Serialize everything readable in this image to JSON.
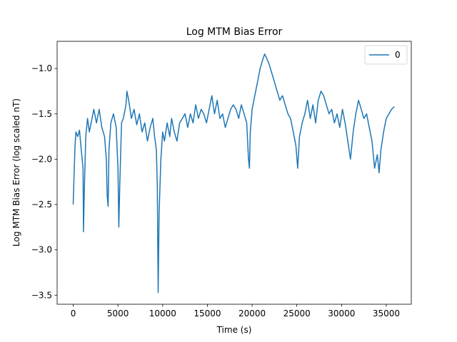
{
  "chart_data": {
    "type": "line",
    "title": "Log MTM Bias Error",
    "xlabel": "Time (s)",
    "ylabel": "Log MTM Bias Error (log scaled nT)",
    "xlim": [
      -1800,
      37800
    ],
    "ylim": [
      -3.6,
      -0.7
    ],
    "xticks": [
      0,
      5000,
      10000,
      15000,
      20000,
      25000,
      30000,
      35000
    ],
    "xtick_labels": [
      "0",
      "5000",
      "10000",
      "15000",
      "20000",
      "25000",
      "30000",
      "35000"
    ],
    "yticks": [
      -3.5,
      -3.0,
      -2.5,
      -2.0,
      -1.5,
      -1.0
    ],
    "ytick_labels": [
      "−3.5",
      "−3.0",
      "−2.5",
      "−2.0",
      "−1.5",
      "−1.0"
    ],
    "grid": false,
    "legend_position": "upper right",
    "series": [
      {
        "name": "0",
        "color": "#1f77b4",
        "points": [
          [
            0,
            -2.5
          ],
          [
            100,
            -2.15
          ],
          [
            200,
            -1.85
          ],
          [
            300,
            -1.7
          ],
          [
            500,
            -1.75
          ],
          [
            700,
            -1.68
          ],
          [
            900,
            -1.9
          ],
          [
            1100,
            -2.1
          ],
          [
            1150,
            -2.8
          ],
          [
            1250,
            -2.3
          ],
          [
            1400,
            -1.75
          ],
          [
            1600,
            -1.55
          ],
          [
            1800,
            -1.7
          ],
          [
            2000,
            -1.6
          ],
          [
            2300,
            -1.45
          ],
          [
            2600,
            -1.6
          ],
          [
            2900,
            -1.45
          ],
          [
            3200,
            -1.65
          ],
          [
            3500,
            -1.75
          ],
          [
            3700,
            -2.0
          ],
          [
            3800,
            -2.4
          ],
          [
            3900,
            -2.52
          ],
          [
            4000,
            -1.9
          ],
          [
            4200,
            -1.6
          ],
          [
            4500,
            -1.5
          ],
          [
            4800,
            -1.65
          ],
          [
            5000,
            -2.1
          ],
          [
            5100,
            -2.75
          ],
          [
            5200,
            -2.3
          ],
          [
            5400,
            -1.6
          ],
          [
            5600,
            -1.55
          ],
          [
            5900,
            -1.4
          ],
          [
            6000,
            -1.25
          ],
          [
            6200,
            -1.35
          ],
          [
            6500,
            -1.55
          ],
          [
            6800,
            -1.45
          ],
          [
            7100,
            -1.62
          ],
          [
            7400,
            -1.5
          ],
          [
            7700,
            -1.7
          ],
          [
            8000,
            -1.6
          ],
          [
            8300,
            -1.8
          ],
          [
            8600,
            -1.65
          ],
          [
            8900,
            -1.55
          ],
          [
            9100,
            -1.75
          ],
          [
            9300,
            -1.9
          ],
          [
            9400,
            -2.3
          ],
          [
            9500,
            -3.47
          ],
          [
            9600,
            -2.6
          ],
          [
            9800,
            -2.0
          ],
          [
            10000,
            -1.7
          ],
          [
            10200,
            -1.8
          ],
          [
            10500,
            -1.6
          ],
          [
            10800,
            -1.75
          ],
          [
            11000,
            -1.55
          ],
          [
            11300,
            -1.7
          ],
          [
            11600,
            -1.8
          ],
          [
            11900,
            -1.6
          ],
          [
            12200,
            -1.55
          ],
          [
            12500,
            -1.5
          ],
          [
            12800,
            -1.65
          ],
          [
            13100,
            -1.5
          ],
          [
            13400,
            -1.6
          ],
          [
            13700,
            -1.4
          ],
          [
            14000,
            -1.55
          ],
          [
            14300,
            -1.45
          ],
          [
            14600,
            -1.5
          ],
          [
            14900,
            -1.6
          ],
          [
            15200,
            -1.45
          ],
          [
            15500,
            -1.3
          ],
          [
            15800,
            -1.5
          ],
          [
            16100,
            -1.35
          ],
          [
            16400,
            -1.55
          ],
          [
            16700,
            -1.5
          ],
          [
            17000,
            -1.65
          ],
          [
            17300,
            -1.55
          ],
          [
            17600,
            -1.45
          ],
          [
            17900,
            -1.4
          ],
          [
            18200,
            -1.45
          ],
          [
            18500,
            -1.55
          ],
          [
            18800,
            -1.4
          ],
          [
            19100,
            -1.5
          ],
          [
            19400,
            -1.6
          ],
          [
            19600,
            -2.0
          ],
          [
            19700,
            -2.1
          ],
          [
            19800,
            -1.7
          ],
          [
            20000,
            -1.45
          ],
          [
            20300,
            -1.3
          ],
          [
            20600,
            -1.15
          ],
          [
            20900,
            -1.0
          ],
          [
            21200,
            -0.9
          ],
          [
            21400,
            -0.84
          ],
          [
            21600,
            -0.88
          ],
          [
            21900,
            -0.95
          ],
          [
            22200,
            -1.05
          ],
          [
            22500,
            -1.15
          ],
          [
            22800,
            -1.25
          ],
          [
            23100,
            -1.35
          ],
          [
            23400,
            -1.3
          ],
          [
            23700,
            -1.4
          ],
          [
            24000,
            -1.5
          ],
          [
            24300,
            -1.55
          ],
          [
            24600,
            -1.7
          ],
          [
            24900,
            -1.85
          ],
          [
            25100,
            -2.1
          ],
          [
            25300,
            -1.75
          ],
          [
            25600,
            -1.6
          ],
          [
            25900,
            -1.5
          ],
          [
            26200,
            -1.35
          ],
          [
            26500,
            -1.55
          ],
          [
            26800,
            -1.4
          ],
          [
            27100,
            -1.6
          ],
          [
            27400,
            -1.35
          ],
          [
            27700,
            -1.25
          ],
          [
            28000,
            -1.3
          ],
          [
            28300,
            -1.4
          ],
          [
            28600,
            -1.5
          ],
          [
            28900,
            -1.45
          ],
          [
            29200,
            -1.6
          ],
          [
            29500,
            -1.5
          ],
          [
            29800,
            -1.65
          ],
          [
            30100,
            -1.45
          ],
          [
            30400,
            -1.6
          ],
          [
            30700,
            -1.8
          ],
          [
            31000,
            -2.0
          ],
          [
            31300,
            -1.7
          ],
          [
            31600,
            -1.5
          ],
          [
            31900,
            -1.35
          ],
          [
            32200,
            -1.45
          ],
          [
            32500,
            -1.55
          ],
          [
            32800,
            -1.5
          ],
          [
            33100,
            -1.65
          ],
          [
            33400,
            -1.8
          ],
          [
            33700,
            -2.1
          ],
          [
            34000,
            -1.95
          ],
          [
            34200,
            -2.15
          ],
          [
            34400,
            -1.9
          ],
          [
            34700,
            -1.7
          ],
          [
            35000,
            -1.55
          ],
          [
            35300,
            -1.5
          ],
          [
            35600,
            -1.45
          ],
          [
            35900,
            -1.42
          ]
        ]
      }
    ]
  }
}
